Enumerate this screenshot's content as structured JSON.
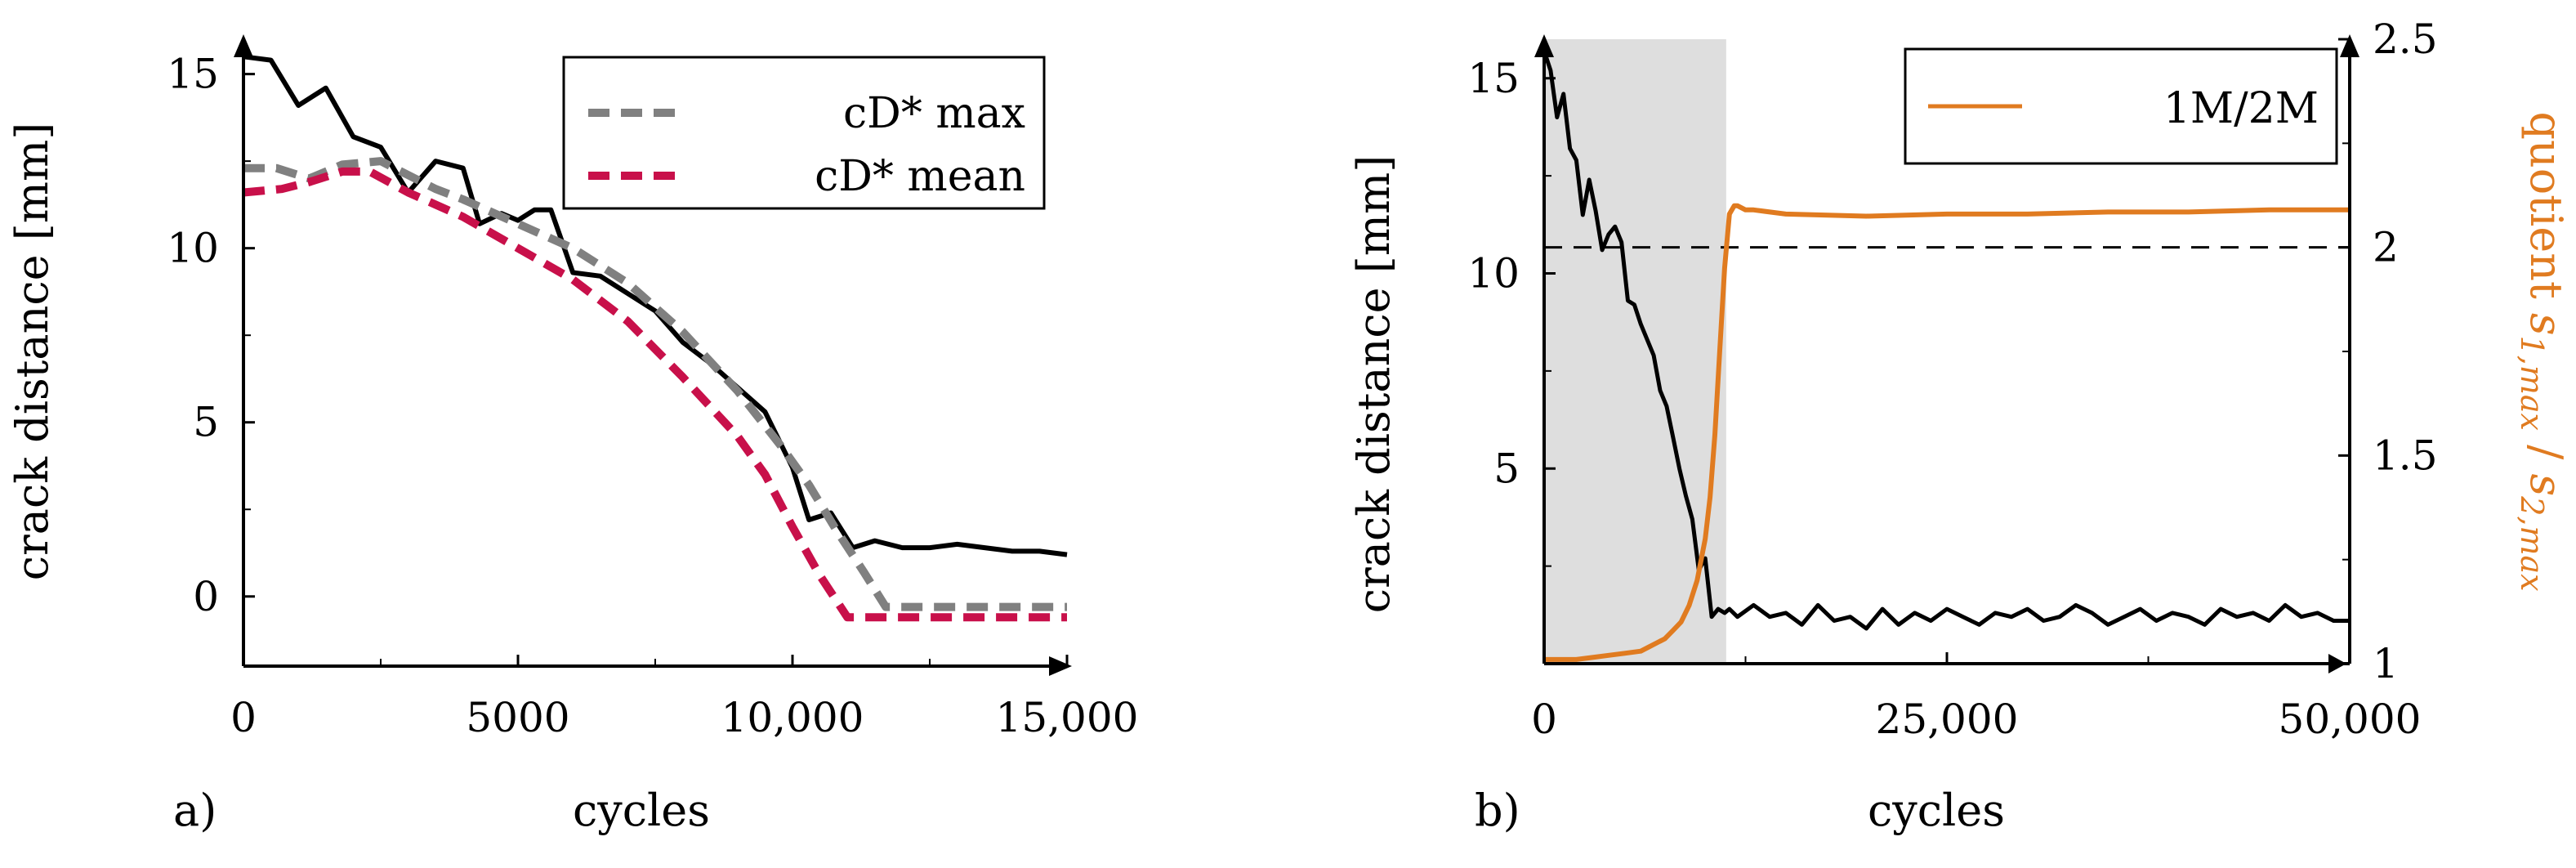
{
  "chart_data": [
    {
      "type": "line",
      "panel_label": "a)",
      "xlabel": "cycles",
      "ylabel": "crack distance [mm]",
      "xlim": [
        0,
        15000
      ],
      "ylim": [
        -2,
        16
      ],
      "xticks": [
        0,
        5000,
        10000,
        15000
      ],
      "xtick_labels": [
        "0",
        "5000",
        "10,000",
        "15,000"
      ],
      "yticks": [
        0,
        5,
        10,
        15
      ],
      "ytick_labels": [
        "0",
        "5",
        "10",
        "15"
      ],
      "legend_position": "top-right",
      "series": [
        {
          "name": "crack distance",
          "style": "solid",
          "color": "#000000",
          "in_legend": false,
          "x": [
            0,
            500,
            1000,
            1500,
            2000,
            2500,
            3000,
            3500,
            4000,
            4300,
            4700,
            5000,
            5300,
            5600,
            6000,
            6500,
            7000,
            7500,
            8000,
            8500,
            9000,
            9500,
            10000,
            10300,
            10700,
            11100,
            11500,
            12000,
            12500,
            13000,
            13500,
            14000,
            14500,
            15000
          ],
          "y": [
            15.5,
            15.4,
            14.1,
            14.6,
            13.2,
            12.9,
            11.6,
            12.5,
            12.3,
            10.7,
            11.0,
            10.8,
            11.1,
            11.1,
            9.3,
            9.2,
            8.7,
            8.2,
            7.3,
            6.7,
            6.0,
            5.3,
            3.7,
            2.2,
            2.4,
            1.4,
            1.6,
            1.4,
            1.4,
            1.5,
            1.4,
            1.3,
            1.3,
            1.2
          ]
        },
        {
          "name": "cD* max",
          "style": "dashed",
          "color": "#808080",
          "in_legend": true,
          "x": [
            0,
            600,
            1200,
            1800,
            2500,
            3000,
            3500,
            4000,
            5000,
            6000,
            7000,
            8000,
            9000,
            9800,
            10300,
            10800,
            11300,
            11700,
            12500,
            13500,
            14500,
            15000
          ],
          "y": [
            12.3,
            12.3,
            12.0,
            12.4,
            12.5,
            12.1,
            11.7,
            11.4,
            10.7,
            10.0,
            9.0,
            7.6,
            5.9,
            4.3,
            3.2,
            1.9,
            0.7,
            -0.3,
            -0.3,
            -0.3,
            -0.3,
            -0.3
          ]
        },
        {
          "name": "cD* mean",
          "style": "dashed",
          "color": "#c8104a",
          "in_legend": true,
          "x": [
            0,
            700,
            1200,
            1800,
            2300,
            3000,
            4000,
            5000,
            6000,
            7000,
            8000,
            9000,
            9500,
            10000,
            10500,
            11000,
            11500,
            12000,
            13000,
            14000,
            15000
          ],
          "y": [
            11.6,
            11.7,
            11.9,
            12.2,
            12.2,
            11.6,
            10.9,
            10.0,
            9.1,
            7.9,
            6.3,
            4.6,
            3.5,
            2.0,
            0.6,
            -0.6,
            -0.6,
            -0.6,
            -0.6,
            -0.6,
            -0.6
          ]
        }
      ]
    },
    {
      "type": "line",
      "panel_label": "b)",
      "xlabel": "cycles",
      "ylabel": "crack distance [mm]",
      "y2label": "quotient s1,max / s2,max",
      "y2label_parts": [
        "quotient ",
        "s",
        "1,max",
        " / ",
        "s",
        "2,max"
      ],
      "xlim": [
        0,
        50000
      ],
      "ylim": [
        0,
        16
      ],
      "y2lim": [
        1,
        2.5
      ],
      "xticks": [
        0,
        25000,
        50000
      ],
      "xtick_labels": [
        "0",
        "25,000",
        "50,000"
      ],
      "yticks": [
        5,
        10,
        15
      ],
      "ytick_labels": [
        "5",
        "10",
        "15"
      ],
      "y2ticks": [
        1,
        1.5,
        2,
        2.5
      ],
      "y2tick_labels": [
        "1",
        "1.5",
        "2",
        "2.5"
      ],
      "shaded_region_x": [
        0,
        11300
      ],
      "reference_line_y2": 2.0,
      "legend_position": "top-right",
      "series": [
        {
          "name": "crack distance",
          "axis": "left",
          "style": "solid",
          "color": "#000000",
          "in_legend": false,
          "x": [
            0,
            400,
            800,
            1200,
            1600,
            2000,
            2400,
            2800,
            3200,
            3600,
            4000,
            4400,
            4800,
            5200,
            5600,
            6000,
            6400,
            6800,
            7200,
            7600,
            8000,
            8400,
            8800,
            9200,
            9600,
            10000,
            10400,
            10800,
            11200,
            11500,
            12000,
            13000,
            14000,
            15000,
            16000,
            17000,
            18000,
            19000,
            20000,
            21000,
            22000,
            23000,
            24000,
            25000,
            26000,
            27000,
            28000,
            29000,
            30000,
            31000,
            32000,
            33000,
            34000,
            35000,
            36000,
            37000,
            38000,
            39000,
            40000,
            41000,
            42000,
            43000,
            44000,
            45000,
            46000,
            47000,
            48000,
            49000,
            50000
          ],
          "y": [
            15.7,
            15.2,
            14.0,
            14.6,
            13.2,
            12.9,
            11.5,
            12.4,
            11.6,
            10.6,
            11.0,
            11.2,
            10.8,
            9.3,
            9.2,
            8.7,
            8.3,
            7.9,
            7.0,
            6.6,
            5.8,
            5.0,
            4.3,
            3.7,
            2.4,
            2.7,
            1.2,
            1.4,
            1.3,
            1.4,
            1.2,
            1.5,
            1.2,
            1.3,
            1.0,
            1.5,
            1.1,
            1.2,
            0.9,
            1.4,
            1.0,
            1.3,
            1.1,
            1.4,
            1.2,
            1.0,
            1.3,
            1.2,
            1.4,
            1.1,
            1.2,
            1.5,
            1.3,
            1.0,
            1.2,
            1.4,
            1.1,
            1.3,
            1.2,
            1.0,
            1.4,
            1.2,
            1.3,
            1.1,
            1.5,
            1.2,
            1.3,
            1.1,
            1.1
          ]
        },
        {
          "name": "1M/2M",
          "axis": "right",
          "style": "solid",
          "color": "#e07b20",
          "in_legend": true,
          "x": [
            0,
            1000,
            2000,
            3000,
            4000,
            5000,
            6000,
            6500,
            7000,
            7500,
            8000,
            8500,
            9000,
            9500,
            10000,
            10300,
            10600,
            10900,
            11200,
            11500,
            11800,
            12000,
            12500,
            13000,
            15000,
            20000,
            25000,
            30000,
            35000,
            40000,
            45000,
            50000
          ],
          "y": [
            1.01,
            1.01,
            1.01,
            1.015,
            1.02,
            1.025,
            1.03,
            1.04,
            1.05,
            1.06,
            1.08,
            1.1,
            1.14,
            1.2,
            1.3,
            1.4,
            1.55,
            1.75,
            1.95,
            2.08,
            2.1,
            2.1,
            2.09,
            2.09,
            2.08,
            2.075,
            2.08,
            2.08,
            2.085,
            2.085,
            2.09,
            2.09
          ]
        }
      ]
    }
  ]
}
